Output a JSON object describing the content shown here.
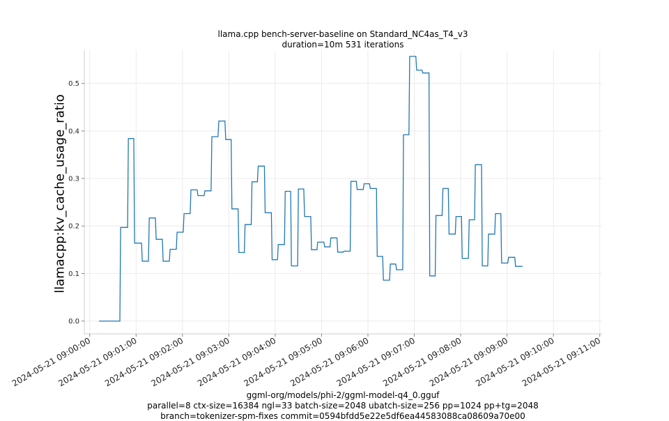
{
  "chart_data": {
    "type": "line",
    "title": "llama.cpp bench-server-baseline on Standard_NC4as_T4_v3",
    "subtitle": "duration=10m 531 iterations",
    "xlabel": "",
    "ylabel": "llamacpp:kv_cache_usage_ratio",
    "ylim": [
      -0.027,
      0.57
    ],
    "xlim": [
      "2024-05-21 08:59:53",
      "2024-05-21 09:11:03"
    ],
    "grid": true,
    "y_ticks": [
      "0.0",
      "0.1",
      "0.2",
      "0.3",
      "0.4",
      "0.5"
    ],
    "x_ticks": [
      "2024-05-21 09:00:00",
      "2024-05-21 09:01:00",
      "2024-05-21 09:02:00",
      "2024-05-21 09:03:00",
      "2024-05-21 09:04:00",
      "2024-05-21 09:05:00",
      "2024-05-21 09:06:00",
      "2024-05-21 09:07:00",
      "2024-05-21 09:08:00",
      "2024-05-21 09:09:00",
      "2024-05-21 09:10:00",
      "2024-05-21 09:11:00"
    ],
    "line_color": "#1f77b4",
    "series": [
      {
        "values": [
          [
            "2024-05-21 09:00:12",
            0.0
          ],
          [
            "2024-05-21 09:00:39",
            0.0
          ],
          [
            "2024-05-21 09:00:40",
            0.197
          ],
          [
            "2024-05-21 09:00:49",
            0.197
          ],
          [
            "2024-05-21 09:00:50",
            0.384
          ],
          [
            "2024-05-21 09:00:57",
            0.384
          ],
          [
            "2024-05-21 09:00:58",
            0.164
          ],
          [
            "2024-05-21 09:01:07",
            0.164
          ],
          [
            "2024-05-21 09:01:08",
            0.126
          ],
          [
            "2024-05-21 09:01:16",
            0.126
          ],
          [
            "2024-05-21 09:01:17",
            0.217
          ],
          [
            "2024-05-21 09:01:25",
            0.217
          ],
          [
            "2024-05-21 09:01:26",
            0.172
          ],
          [
            "2024-05-21 09:01:34",
            0.172
          ],
          [
            "2024-05-21 09:01:35",
            0.126
          ],
          [
            "2024-05-21 09:01:43",
            0.126
          ],
          [
            "2024-05-21 09:01:44",
            0.151
          ],
          [
            "2024-05-21 09:01:52",
            0.151
          ],
          [
            "2024-05-21 09:01:53",
            0.187
          ],
          [
            "2024-05-21 09:02:01",
            0.187
          ],
          [
            "2024-05-21 09:02:02",
            0.226
          ],
          [
            "2024-05-21 09:02:10",
            0.226
          ],
          [
            "2024-05-21 09:02:11",
            0.276
          ],
          [
            "2024-05-21 09:02:19",
            0.276
          ],
          [
            "2024-05-21 09:02:20",
            0.264
          ],
          [
            "2024-05-21 09:02:28",
            0.264
          ],
          [
            "2024-05-21 09:02:29",
            0.274
          ],
          [
            "2024-05-21 09:02:37",
            0.274
          ],
          [
            "2024-05-21 09:02:38",
            0.388
          ],
          [
            "2024-05-21 09:02:46",
            0.388
          ],
          [
            "2024-05-21 09:02:47",
            0.421
          ],
          [
            "2024-05-21 09:02:55",
            0.421
          ],
          [
            "2024-05-21 09:02:56",
            0.382
          ],
          [
            "2024-05-21 09:03:03",
            0.382
          ],
          [
            "2024-05-21 09:03:04",
            0.236
          ],
          [
            "2024-05-21 09:03:12",
            0.236
          ],
          [
            "2024-05-21 09:03:13",
            0.144
          ],
          [
            "2024-05-21 09:03:20",
            0.144
          ],
          [
            "2024-05-21 09:03:21",
            0.203
          ],
          [
            "2024-05-21 09:03:29",
            0.203
          ],
          [
            "2024-05-21 09:03:30",
            0.293
          ],
          [
            "2024-05-21 09:03:37",
            0.293
          ],
          [
            "2024-05-21 09:03:38",
            0.326
          ],
          [
            "2024-05-21 09:03:46",
            0.326
          ],
          [
            "2024-05-21 09:03:47",
            0.228
          ],
          [
            "2024-05-21 09:03:55",
            0.228
          ],
          [
            "2024-05-21 09:03:56",
            0.129
          ],
          [
            "2024-05-21 09:04:03",
            0.129
          ],
          [
            "2024-05-21 09:04:04",
            0.161
          ],
          [
            "2024-05-21 09:04:12",
            0.161
          ],
          [
            "2024-05-21 09:04:13",
            0.273
          ],
          [
            "2024-05-21 09:04:20",
            0.273
          ],
          [
            "2024-05-21 09:04:21",
            0.116
          ],
          [
            "2024-05-21 09:04:29",
            0.116
          ],
          [
            "2024-05-21 09:04:30",
            0.278
          ],
          [
            "2024-05-21 09:04:37",
            0.278
          ],
          [
            "2024-05-21 09:04:38",
            0.22
          ],
          [
            "2024-05-21 09:04:46",
            0.22
          ],
          [
            "2024-05-21 09:04:47",
            0.15
          ],
          [
            "2024-05-21 09:04:54",
            0.15
          ],
          [
            "2024-05-21 09:04:55",
            0.166
          ],
          [
            "2024-05-21 09:05:03",
            0.166
          ],
          [
            "2024-05-21 09:05:04",
            0.156
          ],
          [
            "2024-05-21 09:05:11",
            0.156
          ],
          [
            "2024-05-21 09:05:12",
            0.175
          ],
          [
            "2024-05-21 09:05:20",
            0.175
          ],
          [
            "2024-05-21 09:05:21",
            0.145
          ],
          [
            "2024-05-21 09:05:28",
            0.145
          ],
          [
            "2024-05-21 09:05:29",
            0.147
          ],
          [
            "2024-05-21 09:05:37",
            0.147
          ],
          [
            "2024-05-21 09:05:38",
            0.294
          ],
          [
            "2024-05-21 09:05:45",
            0.294
          ],
          [
            "2024-05-21 09:05:46",
            0.277
          ],
          [
            "2024-05-21 09:05:54",
            0.277
          ],
          [
            "2024-05-21 09:05:55",
            0.289
          ],
          [
            "2024-05-21 09:06:02",
            0.289
          ],
          [
            "2024-05-21 09:06:03",
            0.279
          ],
          [
            "2024-05-21 09:06:11",
            0.279
          ],
          [
            "2024-05-21 09:06:12",
            0.136
          ],
          [
            "2024-05-21 09:06:19",
            0.136
          ],
          [
            "2024-05-21 09:06:20",
            0.086
          ],
          [
            "2024-05-21 09:06:28",
            0.086
          ],
          [
            "2024-05-21 09:06:29",
            0.12
          ],
          [
            "2024-05-21 09:06:36",
            0.12
          ],
          [
            "2024-05-21 09:06:37",
            0.108
          ],
          [
            "2024-05-21 09:06:45",
            0.108
          ],
          [
            "2024-05-21 09:06:46",
            0.392
          ],
          [
            "2024-05-21 09:06:53",
            0.392
          ],
          [
            "2024-05-21 09:06:54",
            0.557
          ],
          [
            "2024-05-21 09:07:02",
            0.557
          ],
          [
            "2024-05-21 09:07:03",
            0.528
          ],
          [
            "2024-05-21 09:07:10",
            0.528
          ],
          [
            "2024-05-21 09:07:11",
            0.522
          ],
          [
            "2024-05-21 09:07:19",
            0.522
          ],
          [
            "2024-05-21 09:07:20",
            0.095
          ],
          [
            "2024-05-21 09:07:27",
            0.095
          ],
          [
            "2024-05-21 09:07:28",
            0.222
          ],
          [
            "2024-05-21 09:07:36",
            0.222
          ],
          [
            "2024-05-21 09:07:37",
            0.279
          ],
          [
            "2024-05-21 09:07:44",
            0.279
          ],
          [
            "2024-05-21 09:07:45",
            0.183
          ],
          [
            "2024-05-21 09:07:53",
            0.183
          ],
          [
            "2024-05-21 09:07:54",
            0.22
          ],
          [
            "2024-05-21 09:08:01",
            0.22
          ],
          [
            "2024-05-21 09:08:02",
            0.132
          ],
          [
            "2024-05-21 09:08:10",
            0.132
          ],
          [
            "2024-05-21 09:08:11",
            0.213
          ],
          [
            "2024-05-21 09:08:18",
            0.213
          ],
          [
            "2024-05-21 09:08:19",
            0.329
          ],
          [
            "2024-05-21 09:08:27",
            0.329
          ],
          [
            "2024-05-21 09:08:28",
            0.116
          ],
          [
            "2024-05-21 09:08:35",
            0.116
          ],
          [
            "2024-05-21 09:08:36",
            0.183
          ],
          [
            "2024-05-21 09:08:44",
            0.183
          ],
          [
            "2024-05-21 09:08:45",
            0.226
          ],
          [
            "2024-05-21 09:08:52",
            0.226
          ],
          [
            "2024-05-21 09:08:53",
            0.122
          ],
          [
            "2024-05-21 09:09:01",
            0.122
          ],
          [
            "2024-05-21 09:09:02",
            0.134
          ],
          [
            "2024-05-21 09:09:10",
            0.134
          ],
          [
            "2024-05-21 09:09:11",
            0.115
          ],
          [
            "2024-05-21 09:09:20",
            0.115
          ]
        ]
      }
    ]
  },
  "footer": {
    "line1": "ggml-org/models/phi-2/ggml-model-q4_0.gguf",
    "line2": "parallel=8 ctx-size=16384 ngl=33 batch-size=2048 ubatch-size=256 pp=1024 pp+tg=2048",
    "line3": "branch=tokenizer-spm-fixes commit=0594bfdd5e22e5df6ea44583088ca08609a70e00"
  }
}
